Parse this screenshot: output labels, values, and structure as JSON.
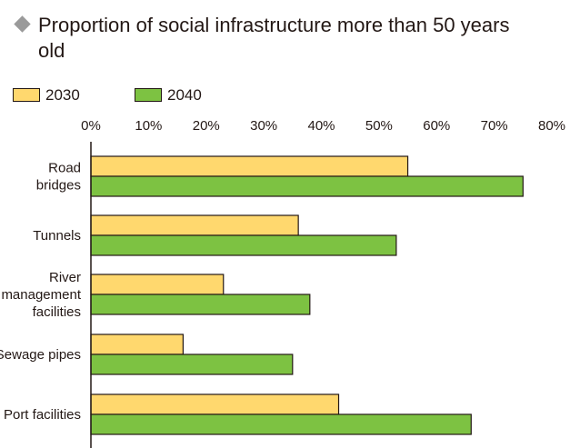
{
  "title": "Proportion of social infrastructure more than 50 years old",
  "colors": {
    "bullet": "#9a9a9a",
    "series_2030": "#ffd86e",
    "series_2040": "#7dc242",
    "outline": "#231815"
  },
  "chart_data": {
    "type": "bar",
    "orientation": "horizontal",
    "title": "Proportion of social infrastructure more than 50 years old",
    "categories": [
      [
        "Road",
        "bridges"
      ],
      [
        "Tunnels"
      ],
      [
        "River",
        "management",
        "facilities"
      ],
      [
        "Sewage pipes"
      ],
      [
        "Port facilities"
      ]
    ],
    "series": [
      {
        "name": "2030",
        "color": "#ffd86e",
        "values": [
          55,
          36,
          23,
          16,
          43
        ]
      },
      {
        "name": "2040",
        "color": "#7dc242",
        "values": [
          75,
          53,
          38,
          35,
          66
        ]
      }
    ],
    "xlim": [
      0,
      80
    ],
    "ticks": [
      "0%",
      "10%",
      "20%",
      "30%",
      "40%",
      "50%",
      "60%",
      "70%",
      "80%"
    ],
    "xlabel": "",
    "ylabel": "",
    "legend": "top-left",
    "grid": false
  }
}
